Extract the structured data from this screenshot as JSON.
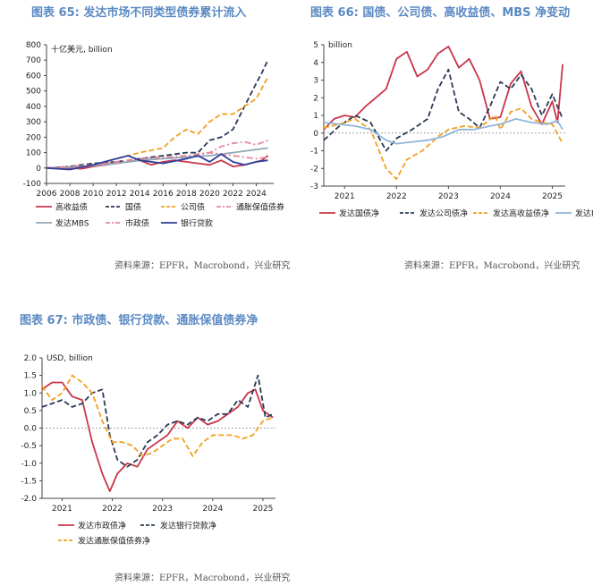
{
  "panels": [
    {
      "title": "图表 65: 发达市场不同类型债券累计流入",
      "source": "资料来源：EPFR，Macrobond，兴业研究"
    },
    {
      "title": "图表 66: 国债、公司债、高收益债、MBS 净变动",
      "source": "资料来源：EPFR，Macrobond，兴业研究"
    },
    {
      "title": "图表 67: 市政债、银行贷款、通胀保值债券净",
      "source": "资料来源：EPFR，Macrobond，兴业研究"
    }
  ],
  "chart_data": [
    {
      "type": "line",
      "title": "图表 65: 发达市场不同类型债券累计流入",
      "unit_label": "十亿美元, billion",
      "xlim": [
        2006,
        2025.5
      ],
      "x_ticks": [
        "2006",
        "2008",
        "2010",
        "2012",
        "2014",
        "2016",
        "2018",
        "2020",
        "2022",
        "2024"
      ],
      "ylim": [
        -100,
        800
      ],
      "y_ticks": [
        "-100",
        "0",
        "100",
        "200",
        "300",
        "400",
        "500",
        "600",
        "700",
        "800"
      ],
      "zero_line": false,
      "legend_placement": "bottom",
      "series": [
        {
          "name": "高收益债",
          "color": "#c8364a",
          "dash": "solid",
          "x": [
            2006,
            2008,
            2009,
            2010,
            2011,
            2012,
            2013,
            2014,
            2015,
            2016,
            2017,
            2018,
            2019,
            2020,
            2021,
            2022,
            2023,
            2024,
            2024.5,
            2025
          ],
          "y": [
            0,
            0,
            -5,
            10,
            20,
            30,
            40,
            50,
            20,
            40,
            50,
            40,
            30,
            20,
            50,
            10,
            20,
            40,
            50,
            80
          ]
        },
        {
          "name": "国债",
          "color": "#2a3a55",
          "dash": "dash",
          "x": [
            2006,
            2008,
            2010,
            2012,
            2014,
            2016,
            2018,
            2019,
            2020,
            2021,
            2022,
            2023,
            2024,
            2024.5,
            2025
          ],
          "y": [
            0,
            10,
            30,
            40,
            60,
            80,
            100,
            100,
            180,
            200,
            250,
            400,
            550,
            620,
            700
          ]
        },
        {
          "name": "公司债",
          "color": "#f0a020",
          "dash": "dash",
          "x": [
            2006,
            2008,
            2010,
            2012,
            2014,
            2016,
            2017,
            2018,
            2019,
            2020,
            2021,
            2022,
            2023,
            2024,
            2024.5,
            2025
          ],
          "y": [
            0,
            -10,
            20,
            60,
            100,
            130,
            200,
            250,
            220,
            300,
            350,
            350,
            400,
            450,
            520,
            590
          ]
        },
        {
          "name": "通胀保值债券",
          "color": "#e48aa0",
          "dash": "dashdot",
          "x": [
            2006,
            2008,
            2010,
            2012,
            2014,
            2016,
            2018,
            2020,
            2021,
            2022,
            2023,
            2024,
            2025
          ],
          "y": [
            0,
            5,
            20,
            40,
            50,
            60,
            70,
            100,
            140,
            160,
            170,
            150,
            180
          ]
        },
        {
          "name": "发达MBS",
          "color": "#8fa8b8",
          "dash": "solid",
          "x": [
            2006,
            2008,
            2010,
            2012,
            2014,
            2016,
            2018,
            2020,
            2022,
            2024,
            2025
          ],
          "y": [
            0,
            5,
            15,
            30,
            50,
            60,
            70,
            80,
            100,
            120,
            130
          ]
        },
        {
          "name": "市政债",
          "color": "#e8839a",
          "dash": "dashdot",
          "x": [
            2006,
            2008,
            2010,
            2012,
            2014,
            2016,
            2018,
            2020,
            2022,
            2024,
            2025
          ],
          "y": [
            0,
            10,
            20,
            40,
            60,
            70,
            80,
            100,
            80,
            60,
            70
          ]
        },
        {
          "name": "银行贷款",
          "color": "#2d3f9a",
          "dash": "solid",
          "x": [
            2006,
            2008,
            2010,
            2012,
            2013,
            2014,
            2016,
            2018,
            2019,
            2020,
            2021,
            2022,
            2023,
            2024,
            2025
          ],
          "y": [
            0,
            -10,
            20,
            60,
            80,
            50,
            30,
            60,
            80,
            40,
            90,
            40,
            20,
            40,
            50
          ]
        }
      ]
    },
    {
      "type": "line",
      "title": "图表 66: 国债、公司债、高收益债、MBS 净变动",
      "unit_label": "billion",
      "xlim": [
        2020.6,
        2025.25
      ],
      "x_ticks": [
        "2021",
        "2022",
        "2023",
        "2024",
        "2025"
      ],
      "ylim": [
        -3,
        5
      ],
      "y_ticks": [
        "-3",
        "-2",
        "-1",
        "0",
        "1",
        "2",
        "3",
        "4",
        "5"
      ],
      "zero_line": true,
      "legend_placement": "bottom",
      "series": [
        {
          "name": "发达国债净",
          "color": "#c8364a",
          "dash": "solid",
          "x": [
            2020.6,
            2020.8,
            2021.0,
            2021.2,
            2021.4,
            2021.6,
            2021.8,
            2022.0,
            2022.2,
            2022.4,
            2022.6,
            2022.8,
            2023.0,
            2023.2,
            2023.4,
            2023.6,
            2023.8,
            2024.0,
            2024.2,
            2024.4,
            2024.6,
            2024.8,
            2025.0,
            2025.1,
            2025.2
          ],
          "y": [
            0.2,
            0.8,
            1.0,
            0.9,
            1.5,
            2.0,
            2.5,
            4.2,
            4.6,
            3.2,
            3.6,
            4.5,
            4.9,
            3.7,
            4.2,
            3.0,
            0.8,
            0.9,
            2.8,
            3.5,
            1.5,
            0.5,
            1.8,
            0.6,
            3.9
          ]
        },
        {
          "name": "发达公司债净",
          "color": "#2a3a55",
          "dash": "dash",
          "x": [
            2020.6,
            2020.9,
            2021.2,
            2021.5,
            2021.8,
            2022.0,
            2022.3,
            2022.6,
            2022.8,
            2023.0,
            2023.2,
            2023.4,
            2023.6,
            2023.8,
            2024.0,
            2024.2,
            2024.4,
            2024.6,
            2024.8,
            2025.0,
            2025.2
          ],
          "y": [
            -0.4,
            0.4,
            1.0,
            0.6,
            -1.0,
            -0.3,
            0.2,
            0.8,
            2.5,
            3.6,
            1.2,
            0.8,
            0.3,
            1.5,
            2.9,
            2.5,
            3.3,
            2.5,
            1.0,
            2.2,
            0.8
          ]
        },
        {
          "name": "发达高收益债净",
          "color": "#f0a020",
          "dash": "dash",
          "x": [
            2020.6,
            2020.9,
            2021.2,
            2021.5,
            2021.8,
            2022.0,
            2022.2,
            2022.5,
            2022.8,
            2023.0,
            2023.3,
            2023.6,
            2023.9,
            2024.0,
            2024.2,
            2024.4,
            2024.6,
            2024.8,
            2025.0,
            2025.2
          ],
          "y": [
            0.3,
            0.5,
            0.8,
            0.2,
            -2.0,
            -2.6,
            -1.5,
            -1.0,
            -0.2,
            0.2,
            0.4,
            0.3,
            1.0,
            0.2,
            1.2,
            1.4,
            0.8,
            0.6,
            0.5,
            -0.6
          ]
        },
        {
          "name": "发达MBS净",
          "color": "#8fb6da",
          "dash": "solid",
          "x": [
            2020.6,
            2020.9,
            2021.2,
            2021.5,
            2021.8,
            2022.0,
            2022.3,
            2022.6,
            2022.9,
            2023.2,
            2023.5,
            2023.8,
            2024.0,
            2024.3,
            2024.6,
            2024.9,
            2025.1,
            2025.2
          ],
          "y": [
            0.6,
            0.5,
            0.4,
            0.2,
            -0.4,
            -0.6,
            -0.5,
            -0.4,
            -0.2,
            0.2,
            0.2,
            0.4,
            0.5,
            0.8,
            0.6,
            0.5,
            0.7,
            0.2
          ]
        }
      ]
    },
    {
      "type": "line",
      "title": "图表 67: 市政债、银行贷款、通胀保值债券净",
      "unit_label": "USD, billion",
      "xlim": [
        2020.6,
        2025.25
      ],
      "x_ticks": [
        "2021",
        "2022",
        "2023",
        "2024",
        "2025"
      ],
      "ylim": [
        -2.0,
        2.0
      ],
      "y_ticks": [
        "-2.0",
        "-1.5",
        "-1.0",
        "-0.5",
        "0.0",
        "0.5",
        "1.0",
        "1.5",
        "2.0"
      ],
      "zero_line": true,
      "legend_placement": "bottom",
      "series": [
        {
          "name": "发达市政债净",
          "color": "#c8364a",
          "dash": "solid",
          "x": [
            2020.6,
            2020.8,
            2021.0,
            2021.2,
            2021.4,
            2021.6,
            2021.8,
            2021.95,
            2022.1,
            2022.3,
            2022.5,
            2022.7,
            2022.9,
            2023.1,
            2023.3,
            2023.5,
            2023.7,
            2023.9,
            2024.1,
            2024.3,
            2024.5,
            2024.7,
            2024.85,
            2025.0,
            2025.2
          ],
          "y": [
            1.1,
            1.3,
            1.3,
            0.9,
            0.8,
            -0.4,
            -1.3,
            -1.8,
            -1.3,
            -1.0,
            -1.1,
            -0.6,
            -0.4,
            -0.2,
            0.2,
            0.0,
            0.3,
            0.1,
            0.2,
            0.4,
            0.6,
            1.0,
            1.1,
            0.5,
            0.3
          ]
        },
        {
          "name": "发达银行贷款净",
          "color": "#2a3a55",
          "dash": "dash",
          "x": [
            2020.6,
            2020.8,
            2021.0,
            2021.2,
            2021.4,
            2021.6,
            2021.8,
            2021.95,
            2022.1,
            2022.3,
            2022.5,
            2022.7,
            2022.9,
            2023.1,
            2023.3,
            2023.5,
            2023.7,
            2023.9,
            2024.1,
            2024.3,
            2024.5,
            2024.7,
            2024.9,
            2025.05,
            2025.2
          ],
          "y": [
            0.6,
            0.7,
            0.8,
            0.6,
            0.7,
            1.0,
            1.1,
            -0.2,
            -0.9,
            -1.1,
            -0.9,
            -0.4,
            -0.2,
            0.1,
            0.2,
            0.1,
            0.3,
            0.2,
            0.4,
            0.4,
            0.8,
            0.6,
            1.5,
            0.3,
            0.4
          ]
        },
        {
          "name": "发达通胀保值债券净",
          "color": "#f0a020",
          "dash": "dash",
          "x": [
            2020.6,
            2020.8,
            2021.0,
            2021.2,
            2021.4,
            2021.6,
            2021.8,
            2022.0,
            2022.2,
            2022.4,
            2022.6,
            2022.8,
            2023.0,
            2023.2,
            2023.4,
            2023.6,
            2023.8,
            2024.0,
            2024.2,
            2024.4,
            2024.6,
            2024.8,
            2025.0,
            2025.2
          ],
          "y": [
            1.2,
            0.8,
            1.0,
            1.5,
            1.3,
            1.0,
            0.2,
            -0.4,
            -0.4,
            -0.5,
            -0.8,
            -0.7,
            -0.5,
            -0.3,
            -0.3,
            -0.8,
            -0.4,
            -0.2,
            -0.2,
            -0.2,
            -0.3,
            -0.2,
            0.2,
            0.3
          ]
        }
      ]
    }
  ]
}
